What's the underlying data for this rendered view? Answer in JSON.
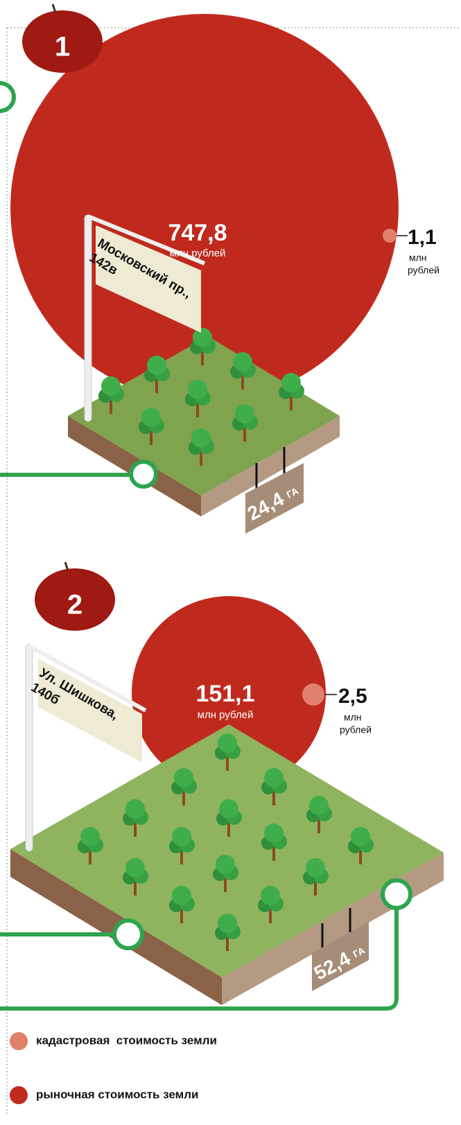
{
  "items": [
    {
      "number": "1",
      "address": [
        "Московский пр.,",
        "142в"
      ],
      "market_value": "747,8",
      "market_unit": "млн рублей",
      "cadastral_value": "1,1",
      "cadastral_unit": [
        "млн",
        "рублей"
      ],
      "area": "24,4",
      "area_unit": "ГА"
    },
    {
      "number": "2",
      "address": [
        "Ул. Шишкова,",
        "140б"
      ],
      "market_value": "151,1",
      "market_unit": "млн рублей",
      "cadastral_value": "2,5",
      "cadastral_unit": [
        "млн",
        "рублей"
      ],
      "area": "52,4",
      "area_unit": "ГА"
    }
  ],
  "legend": [
    "кадастровая  стоимость земли",
    "рыночная стоимость земли"
  ]
}
